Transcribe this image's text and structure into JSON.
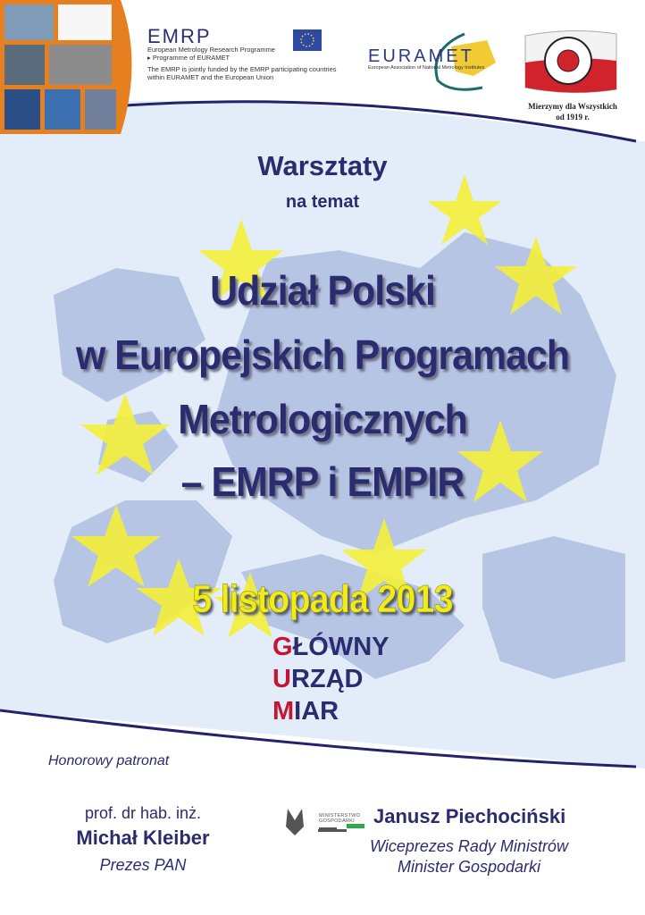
{
  "header": {
    "emrp": {
      "logo": "EMRP",
      "line1": "European Metrology Research Programme",
      "line2": "Programme of EURAMET",
      "funding": "The EMRP is jointly funded by the EMRP participating countries",
      "funding2": "within EURAMET and the European Union"
    },
    "euramet": {
      "logo": "EURAMET",
      "subtitle": "European Association of National Metrology Institutes"
    },
    "gum": {
      "logo_text": "GŁÓWNY URZĄD MIAR GUM",
      "motto1": "Mierzymy dla Wszystkich",
      "motto2": "od 1919 r."
    }
  },
  "main": {
    "kicker": "Warsztaty",
    "sub": "na temat",
    "title_lines": [
      "Udział Polski",
      "w Europejskich Programach",
      "Metrologicznych",
      "– EMRP i EMPIR"
    ],
    "date": "5 listopada 2013",
    "venue": [
      {
        "initial": "G",
        "rest": "ŁÓWNY"
      },
      {
        "initial": "U",
        "rest": "RZĄD"
      },
      {
        "initial": "M",
        "rest": "IAR"
      }
    ]
  },
  "footer": {
    "patronage": "Honorowy patronat",
    "left": {
      "degree": "prof. dr hab. inż.",
      "name": "Michał Kleiber",
      "role": "Prezes PAN"
    },
    "ministry_logo": "MINISTERSTWO GOSPODARKI",
    "right": {
      "name": "Janusz Piechociński",
      "role1": "Wiceprezes Rady Ministrów",
      "role2": "Minister Gospodarki"
    }
  },
  "colors": {
    "navy": "#2b2c6e",
    "red": "#c51533",
    "yellow": "#f2ec16",
    "background": "#e2ecf8",
    "map": "#b3c3e3"
  }
}
